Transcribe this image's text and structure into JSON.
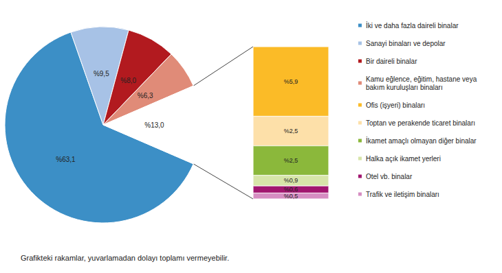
{
  "chart_data": [
    {
      "type": "pie",
      "categories": [
        "İki ve daha fazla daireli binalar",
        "Sanayi binaları ve depolar",
        "Bir daireli binalar",
        "Kamu eğlence, eğitim, hastane veya bakım kuruluşları binaları",
        null
      ],
      "values": [
        63.1,
        9.5,
        8.0,
        6.3,
        13.0
      ],
      "value_labels": [
        "%63,1",
        "%9,5",
        "%8,0",
        "%6,3",
        "%13,0"
      ],
      "colors": [
        "#3c8fc6",
        "#a7c2e6",
        "#b21a1f",
        "#e08b78",
        "#ffffff"
      ],
      "data_labels": true,
      "legend": "right",
      "annotations": [
        "Grafikteki rakamlar, yuvarlamadan dolayı toplamı vermeyebilir."
      ]
    },
    {
      "type": "bar",
      "stacked": true,
      "categories": [
        "Ofis (işyeri) binaları",
        "Toptan ve perakende ticaret binaları",
        "İkamet amaçlı olmayan diğer binalar",
        "Halka açık ikamet yerleri",
        "Otel vb. binalar",
        "Trafik ve iletişim binaları"
      ],
      "values": [
        5.9,
        2.5,
        2.5,
        0.9,
        0.6,
        0.5
      ],
      "value_labels": [
        "%5,9",
        "%2,5",
        "%2,5",
        "%0,9",
        "%0,6",
        "%0,5"
      ],
      "colors": [
        "#fbbb27",
        "#fde0a9",
        "#8bb83b",
        "#d7e5a9",
        "#a1166f",
        "#d68dc2"
      ],
      "data_labels": true,
      "tick_labels": false
    }
  ]
}
